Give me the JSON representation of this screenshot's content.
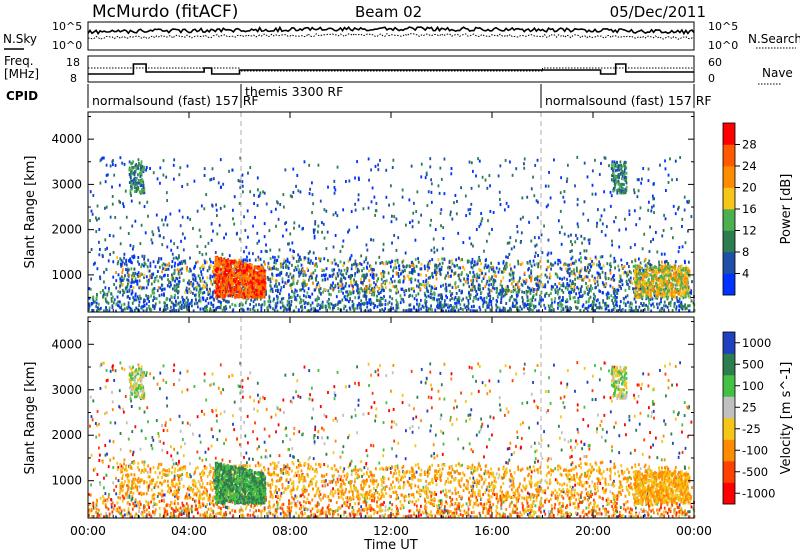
{
  "header": {
    "station": "McMurdo (fitACF)",
    "beam": "Beam 02",
    "date": "05/Dec/2011"
  },
  "noise_panel": {
    "left_label": "N.Sky",
    "right_label": "N.Search",
    "left_ticks": [
      "10^5",
      "10^0"
    ],
    "right_ticks": [
      "10^5",
      "10^0"
    ]
  },
  "freq_panel": {
    "left_label_1": "Freq.",
    "left_label_2": "[MHz]",
    "left_ticks": [
      "18",
      "8"
    ],
    "right_label": "Nave",
    "right_ticks": [
      "60",
      "0"
    ]
  },
  "cpid_panel": {
    "label": "CPID",
    "segments": [
      {
        "start": 0,
        "end": 6,
        "text": "normalsound (fast) 157 RF"
      },
      {
        "start": 6,
        "end": 18,
        "text": "themis 3300 RF"
      },
      {
        "start": 18,
        "end": 24,
        "text": "normalsound (fast) 157 RF"
      }
    ]
  },
  "colors": {
    "power_scale": [
      "#0033ff",
      "#1f4fa8",
      "#2e7d4f",
      "#4caf50",
      "#f5c518",
      "#ff8c00",
      "#ff5a00",
      "#ff0000"
    ],
    "velocity_scale": [
      "#2040c0",
      "#2e7d4f",
      "#44c044",
      "#c0c0c0",
      "#f5c518",
      "#ff8c00",
      "#ff4000",
      "#ff0000"
    ]
  },
  "chart_data": [
    {
      "type": "heatmap",
      "name": "power",
      "ylabel": "Slant Range [km]",
      "yticks": [
        "1000",
        "2000",
        "3000",
        "4000"
      ],
      "ylim": [
        180,
        4600
      ],
      "xlim": [
        0,
        24
      ],
      "colorbar_label": "Power [dB]",
      "colorbar_ticks": [
        "4",
        "8",
        "12",
        "16",
        "20",
        "24",
        "28"
      ],
      "scale": [
        0,
        32
      ]
    },
    {
      "type": "heatmap",
      "name": "velocity",
      "ylabel": "Slant Range [km]",
      "yticks": [
        "1000",
        "2000",
        "3000",
        "4000"
      ],
      "ylim": [
        180,
        4600
      ],
      "xlim": [
        0,
        24
      ],
      "colorbar_label": "Velocity [m s^-1]",
      "colorbar_ticks": [
        "1000",
        "500",
        "100",
        "25",
        "-25",
        "-100",
        "-500",
        "-1000"
      ]
    }
  ],
  "time_axis": {
    "ticks": [
      "00:00",
      "04:00",
      "08:00",
      "12:00",
      "16:00",
      "20:00",
      "00:00"
    ],
    "xlabel": "Time UT"
  }
}
